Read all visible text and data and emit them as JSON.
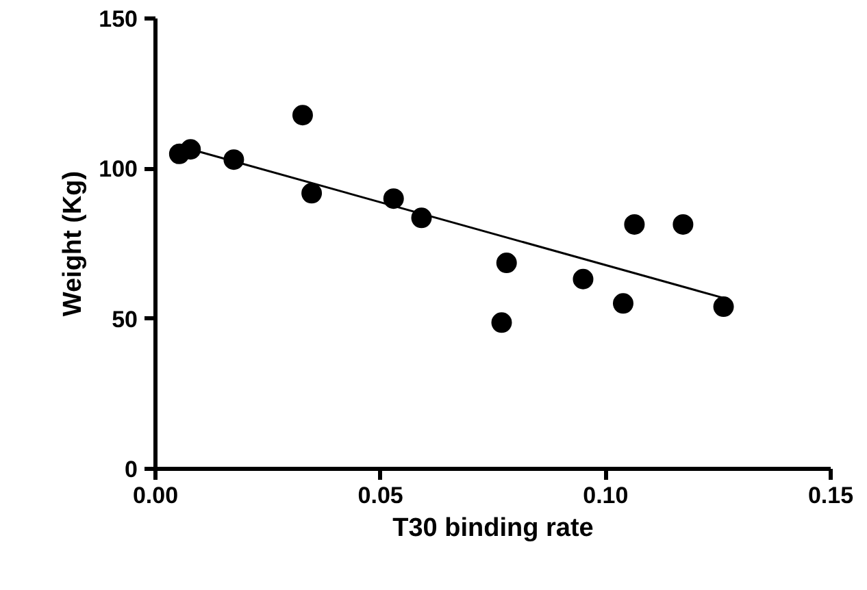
{
  "chart_data": {
    "type": "scatter",
    "xlabel": "T30 binding rate",
    "ylabel": "Weight (Kg)",
    "xlim": [
      0,
      0.15
    ],
    "ylim": [
      0,
      150
    ],
    "xticks": [
      {
        "value": 0,
        "label": "0.00"
      },
      {
        "value": 0.05,
        "label": "0.05"
      },
      {
        "value": 0.1,
        "label": "0.10"
      },
      {
        "value": 0.15,
        "label": "0.15"
      }
    ],
    "yticks": [
      0,
      50,
      100,
      150
    ],
    "grid": false,
    "series": [
      {
        "marker": "circle",
        "color": "#000000",
        "x": [
          0.0053,
          0.0078,
          0.0174,
          0.0327,
          0.0347,
          0.0529,
          0.0591,
          0.078,
          0.0769,
          0.095,
          0.1039,
          0.1064,
          0.1172,
          0.1262
        ],
        "values": [
          104.9,
          106.4,
          103,
          117.8,
          91.8,
          90,
          83.6,
          68.6,
          48.7,
          63.2,
          55.1,
          81.4,
          81.4,
          54
        ]
      },
      {
        "type": "line",
        "color": "#000000",
        "line_style": "solid",
        "x": [
          0.0053,
          0.1262
        ],
        "values": [
          107.5,
          56.9
        ]
      }
    ]
  }
}
